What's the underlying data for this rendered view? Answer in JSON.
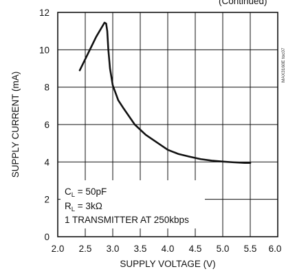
{
  "chart_data": {
    "type": "line",
    "title": "",
    "xlabel": "SUPPLY VOLTAGE (V)",
    "ylabel": "SUPPLY CURRENT (mA)",
    "xlim": [
      2.0,
      6.0
    ],
    "ylim": [
      0,
      12
    ],
    "x_ticks": [
      "2.0",
      "2.5",
      "3.0",
      "3.5",
      "4.0",
      "4.5",
      "5.0",
      "5.5",
      "6.0"
    ],
    "y_ticks": [
      "0",
      "2",
      "4",
      "6",
      "8",
      "10",
      "12"
    ],
    "grid": true,
    "series": [
      {
        "x": [
          2.4,
          2.5,
          2.6,
          2.7,
          2.8,
          2.85,
          2.88,
          2.9,
          2.92,
          2.95,
          3.0,
          3.1,
          3.2,
          3.4,
          3.6,
          3.8,
          4.0,
          4.2,
          4.4,
          4.6,
          4.8,
          5.0,
          5.2,
          5.4,
          5.5
        ],
        "y": [
          8.9,
          9.5,
          10.1,
          10.7,
          11.2,
          11.45,
          11.4,
          11.0,
          10.0,
          9.0,
          8.1,
          7.3,
          6.85,
          6.0,
          5.45,
          5.05,
          4.65,
          4.42,
          4.28,
          4.15,
          4.07,
          4.02,
          3.98,
          3.95,
          3.95
        ]
      }
    ],
    "legend_box": {
      "line1_main": "C",
      "line1_sub": "L",
      "line1_rest": " = 50pF",
      "line2_main": "R",
      "line2_sub": "L",
      "line2_rest": " = 3kΩ",
      "line3": "1 TRANSMITTER AT 250kbps"
    },
    "top_clip_text": "(Continued)",
    "side_code": "MAX3160E toc07"
  }
}
